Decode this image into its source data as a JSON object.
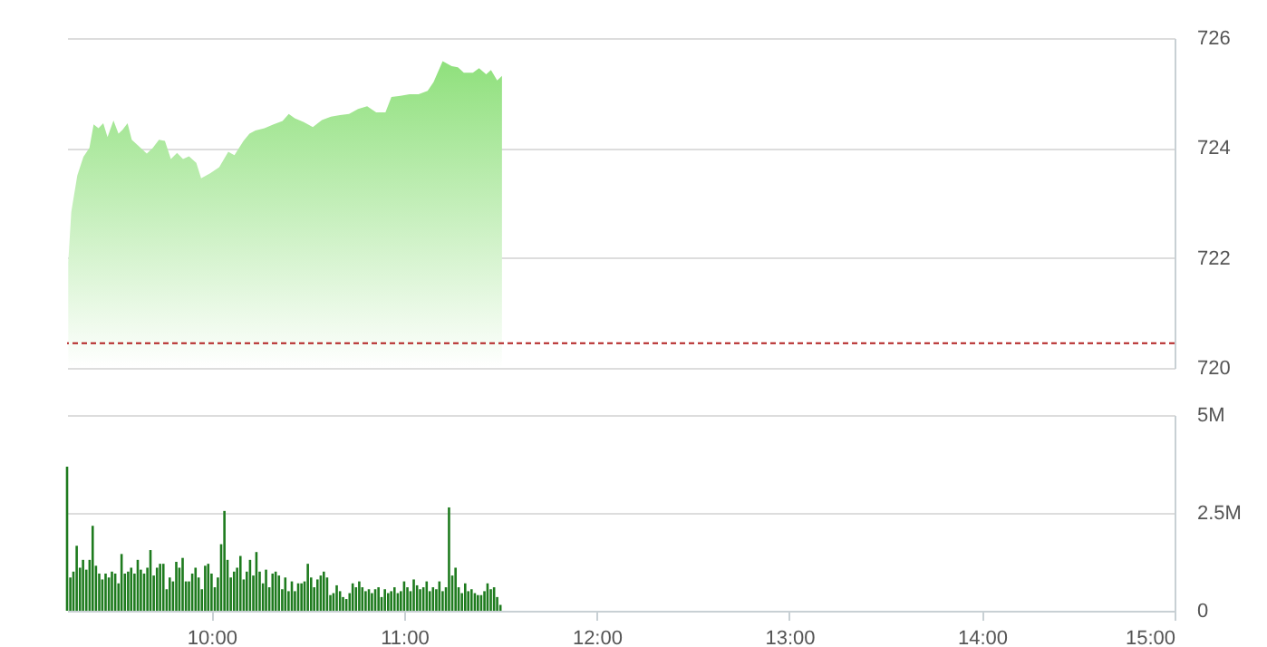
{
  "chart_data": [
    {
      "type": "area",
      "x": [
        9.256,
        9.272,
        9.303,
        9.335,
        9.366,
        9.388,
        9.413,
        9.438,
        9.46,
        9.491,
        9.517,
        9.538,
        9.564,
        9.586,
        9.617,
        9.664,
        9.695,
        9.727,
        9.758,
        9.789,
        9.821,
        9.852,
        9.883,
        9.921,
        9.946,
        9.993,
        10.04,
        10.087,
        10.119,
        10.166,
        10.197,
        10.228,
        10.275,
        10.322,
        10.369,
        10.401,
        10.432,
        10.479,
        10.526,
        10.573,
        10.62,
        10.667,
        10.714,
        10.761,
        10.808,
        10.855,
        10.903,
        10.934,
        10.981,
        11.028,
        11.075,
        11.122,
        11.153,
        11.2,
        11.247,
        11.279,
        11.31,
        11.357,
        11.389,
        11.426,
        11.451,
        11.483,
        11.508
      ],
      "series": [
        {
          "color": "#8fe07c",
          "values": [
            721.92,
            722.84,
            723.5,
            723.84,
            724.0,
            724.43,
            724.36,
            724.45,
            724.2,
            724.5,
            724.26,
            724.33,
            724.45,
            724.15,
            724.05,
            723.9,
            724.0,
            724.15,
            724.13,
            723.8,
            723.91,
            723.8,
            723.85,
            723.73,
            723.45,
            723.54,
            723.65,
            723.93,
            723.87,
            724.13,
            724.26,
            724.32,
            724.36,
            724.43,
            724.49,
            724.62,
            724.54,
            724.47,
            724.38,
            724.51,
            724.57,
            724.6,
            724.62,
            724.71,
            724.76,
            724.65,
            724.65,
            724.93,
            724.95,
            724.98,
            724.98,
            725.04,
            725.2,
            725.58,
            725.49,
            725.47,
            725.37,
            725.37,
            725.45,
            725.34,
            725.42,
            725.23,
            725.31
          ]
        }
      ],
      "xlim": [
        9.25,
        15
      ],
      "ylim": [
        720,
        726
      ],
      "yticks": [
        720,
        722,
        724,
        726
      ],
      "grid": "y",
      "tick_labels": "y",
      "ref_lines": [
        {
          "axis": "y",
          "value": 720.45,
          "color": "#b22222",
          "line_style": "dashed"
        }
      ]
    },
    {
      "type": "bar",
      "x": [
        9.25,
        9.267,
        9.283,
        9.3,
        9.317,
        9.333,
        9.35,
        9.367,
        9.383,
        9.4,
        9.417,
        9.433,
        9.45,
        9.467,
        9.483,
        9.5,
        9.517,
        9.533,
        9.55,
        9.567,
        9.583,
        9.6,
        9.617,
        9.633,
        9.65,
        9.667,
        9.683,
        9.7,
        9.717,
        9.733,
        9.75,
        9.767,
        9.783,
        9.8,
        9.817,
        9.833,
        9.85,
        9.867,
        9.883,
        9.9,
        9.917,
        9.933,
        9.95,
        9.967,
        9.983,
        10,
        10.017,
        10.033,
        10.05,
        10.067,
        10.083,
        10.1,
        10.117,
        10.133,
        10.15,
        10.167,
        10.183,
        10.2,
        10.217,
        10.233,
        10.25,
        10.267,
        10.283,
        10.3,
        10.317,
        10.333,
        10.35,
        10.367,
        10.383,
        10.4,
        10.417,
        10.433,
        10.45,
        10.467,
        10.483,
        10.5,
        10.517,
        10.533,
        10.55,
        10.567,
        10.583,
        10.6,
        10.617,
        10.633,
        10.65,
        10.667,
        10.683,
        10.7,
        10.717,
        10.733,
        10.75,
        10.767,
        10.783,
        10.8,
        10.817,
        10.833,
        10.85,
        10.867,
        10.883,
        10.9,
        10.917,
        10.933,
        10.95,
        10.967,
        10.983,
        11,
        11.017,
        11.033,
        11.05,
        11.067,
        11.083,
        11.1,
        11.117,
        11.133,
        11.15,
        11.167,
        11.183,
        11.2,
        11.217,
        11.233,
        11.25,
        11.267,
        11.283,
        11.3,
        11.317,
        11.333,
        11.35,
        11.367,
        11.383,
        11.4,
        11.417,
        11.433,
        11.45,
        11.467,
        11.483,
        11.5
      ],
      "series": [
        {
          "color": "#1e7b1e",
          "values": [
            3.68,
            0.85,
            1.0,
            1.66,
            1.1,
            1.3,
            1.05,
            1.3,
            2.17,
            1.15,
            0.95,
            0.8,
            0.95,
            0.85,
            1.0,
            0.95,
            0.7,
            1.45,
            0.95,
            1.0,
            1.1,
            0.95,
            1.3,
            1.05,
            0.95,
            1.1,
            1.55,
            0.9,
            1.1,
            1.2,
            1.2,
            0.55,
            0.85,
            0.75,
            1.25,
            1.1,
            1.35,
            0.75,
            0.75,
            0.95,
            1.1,
            0.85,
            0.55,
            1.15,
            1.2,
            0.95,
            0.6,
            0.85,
            1.7,
            2.55,
            1.3,
            0.85,
            1.0,
            1.1,
            1.4,
            0.8,
            1.0,
            1.3,
            0.9,
            1.5,
            1.0,
            0.7,
            1.05,
            0.6,
            0.95,
            1.0,
            0.9,
            0.55,
            0.85,
            0.5,
            0.75,
            0.5,
            0.7,
            0.7,
            0.75,
            1.2,
            0.85,
            0.6,
            0.8,
            0.9,
            1.0,
            0.85,
            0.4,
            0.45,
            0.65,
            0.5,
            0.35,
            0.3,
            0.45,
            0.7,
            0.6,
            0.75,
            0.6,
            0.5,
            0.55,
            0.45,
            0.55,
            0.6,
            0.35,
            0.55,
            0.45,
            0.5,
            0.6,
            0.45,
            0.5,
            0.75,
            0.6,
            0.5,
            0.8,
            0.65,
            0.55,
            0.6,
            0.75,
            0.5,
            0.6,
            0.55,
            0.75,
            0.5,
            0.6,
            2.64,
            0.9,
            1.1,
            0.6,
            0.45,
            0.7,
            0.5,
            0.55,
            0.45,
            0.4,
            0.4,
            0.5,
            0.7,
            0.55,
            0.6,
            0.35,
            0.15
          ]
        }
      ],
      "xlim": [
        9.25,
        15
      ],
      "xticks": [
        {
          "value": 10,
          "label": "10:00"
        },
        {
          "value": 11,
          "label": "11:00"
        },
        {
          "value": 12,
          "label": "12:00"
        },
        {
          "value": 13,
          "label": "13:00"
        },
        {
          "value": 14,
          "label": "14:00"
        },
        {
          "value": 15,
          "label": "15:00"
        }
      ],
      "ylim": [
        0,
        5
      ],
      "yticks": [
        0,
        {
          "value": 2.5,
          "label": "2.5M"
        },
        {
          "value": 5,
          "label": "5M"
        }
      ],
      "grid": "y"
    }
  ]
}
